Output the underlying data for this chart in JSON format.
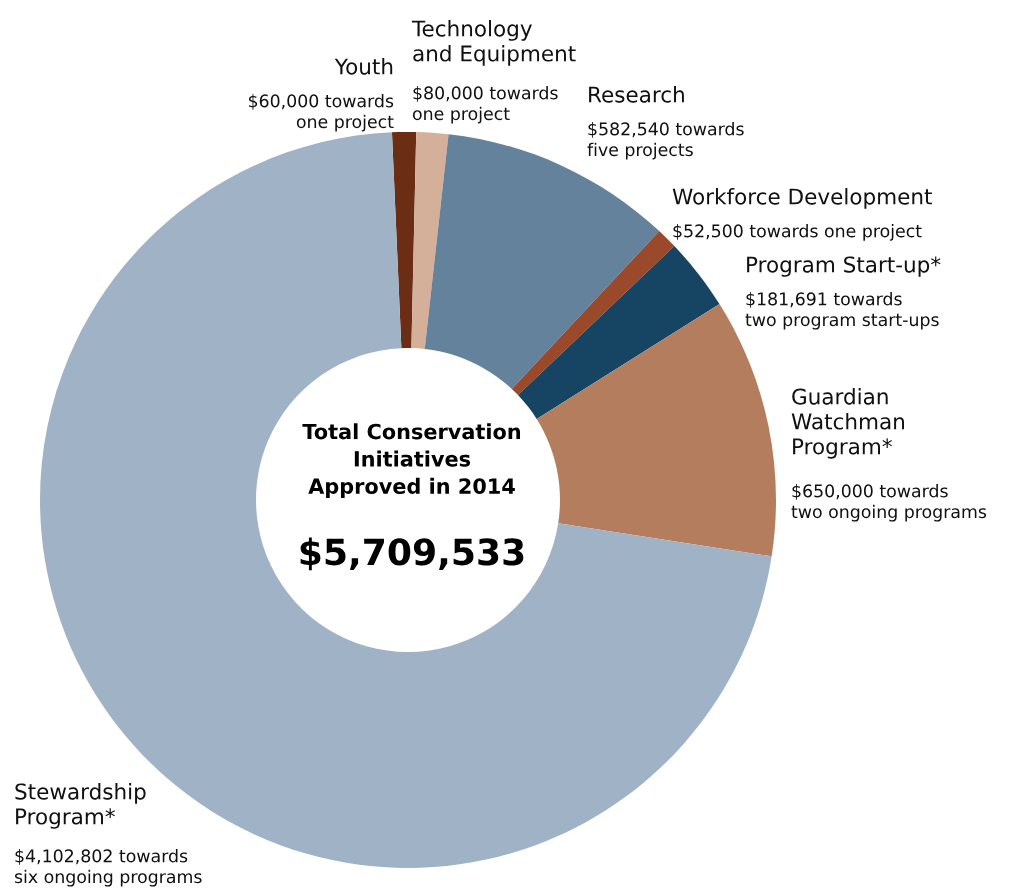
{
  "chart_data": {
    "type": "donut",
    "title": "Total Conservation\nInitiatives\nApproved in 2014",
    "categories": [
      "Youth",
      "Technology\nand Equipment",
      "Research",
      "Workforce Development",
      "Program Start-up*",
      "Guardian\nWatchman\nProgram*",
      "Stewardship\nProgram*"
    ],
    "values": [
      60000,
      80000,
      582540,
      52500,
      181691,
      650000,
      4102802
    ],
    "colors": [
      "#6b2e14",
      "#d4b09a",
      "#64829b",
      "#9a4a2a",
      "#164563",
      "#b47e5e",
      "#a0b2c5"
    ],
    "value_labels": [
      "$60,000 towards\none project",
      "$80,000 towards\none project",
      "$582,540 towards\nfive projects",
      "$52,500 towards one project",
      "$181,691 towards\ntwo program start-ups",
      "$650,000 towards\ntwo ongoing programs",
      "$4,102,802 towards\nsix ongoing programs"
    ],
    "annotations": [
      "$5,709,533"
    ]
  }
}
